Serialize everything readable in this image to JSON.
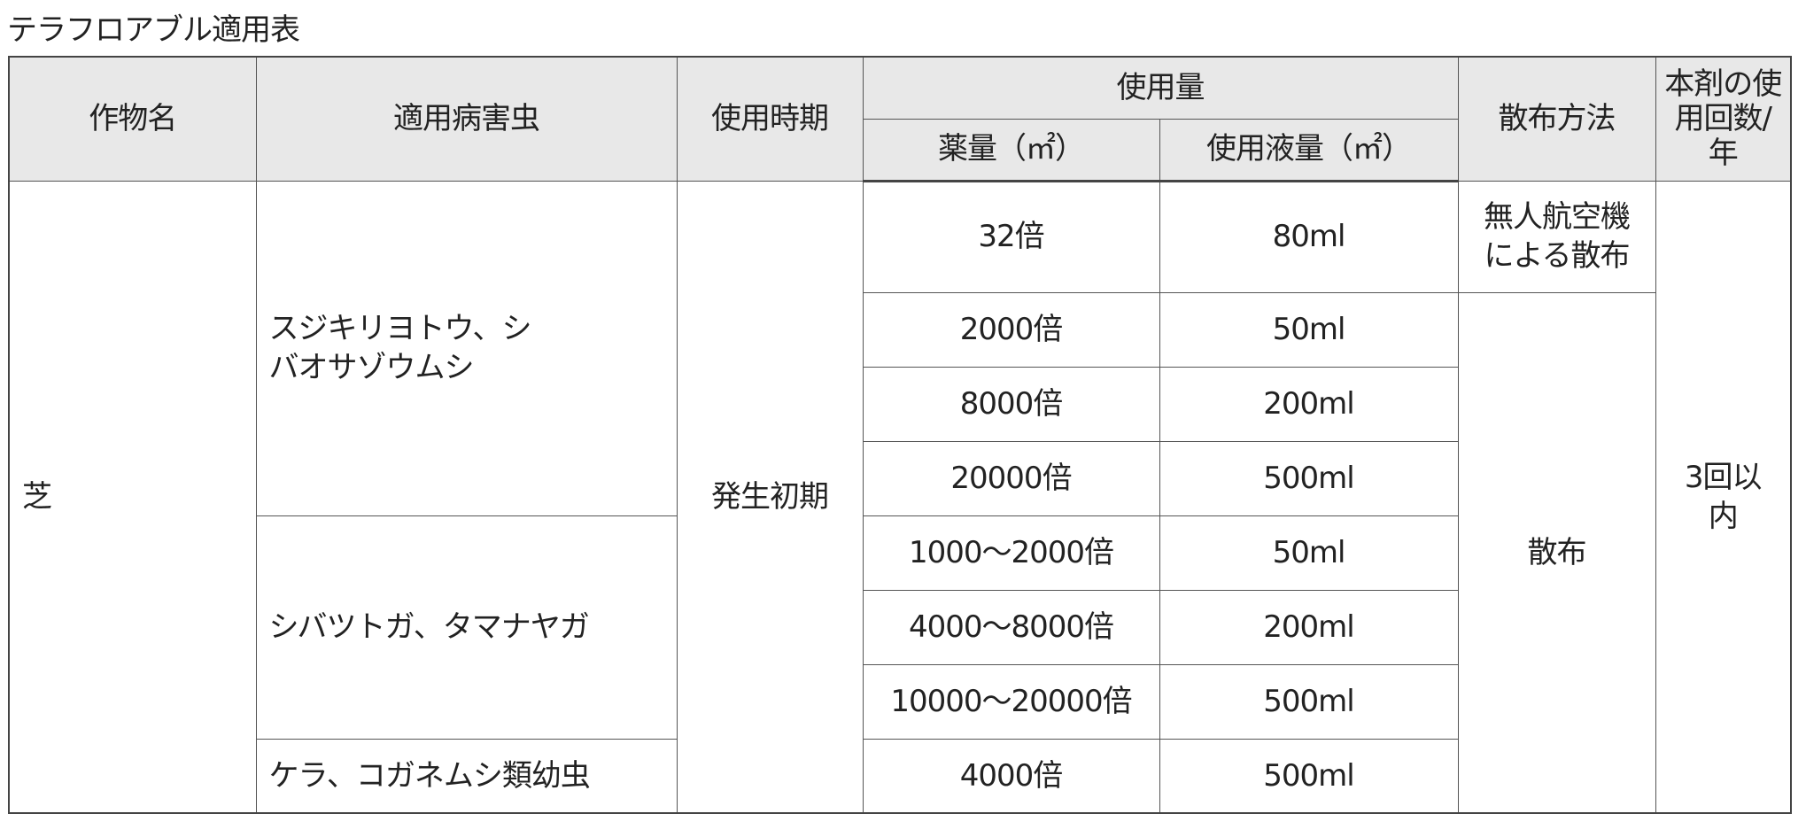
{
  "title": "テラフロアブル適用表",
  "headers": {
    "crop": "作物名",
    "pest": "適用病害虫",
    "timing": "使用時期",
    "amount": "使用量",
    "chemical": "薬量（㎡）",
    "liquid": "使用液量（㎡）",
    "method": "散布方法",
    "count": "本剤の使用回数/年"
  },
  "crop": "芝",
  "timing": "発生初期",
  "count": "3回以内",
  "pests": [
    "スジキリヨトウ、シバオサゾウムシ",
    "シバツトガ、タマナヤガ",
    "ケラ、コガネムシ類幼虫"
  ],
  "methods": [
    "無人航空機による散布",
    "散布"
  ],
  "rows": [
    {
      "chemical": "32倍",
      "liquid": "80ml"
    },
    {
      "chemical": "2000倍",
      "liquid": "50ml"
    },
    {
      "chemical": "8000倍",
      "liquid": "200ml"
    },
    {
      "chemical": "20000倍",
      "liquid": "500ml"
    },
    {
      "chemical": "1000～2000倍",
      "liquid": "50ml"
    },
    {
      "chemical": "4000～8000倍",
      "liquid": "200ml"
    },
    {
      "chemical": "10000～20000倍",
      "liquid": "500ml"
    },
    {
      "chemical": "4000倍",
      "liquid": "500ml"
    }
  ]
}
